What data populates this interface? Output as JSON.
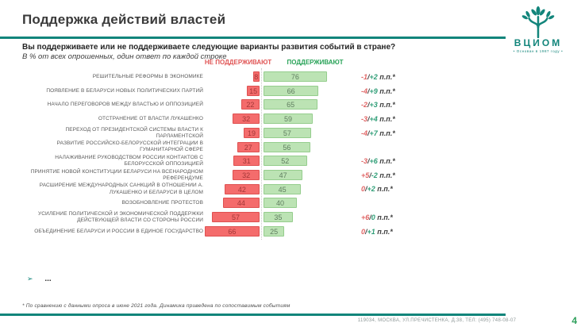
{
  "header": {
    "title": "Поддержка действий властей",
    "logo": {
      "name": "ВЦИОМ",
      "tagline": "• Основан в 1987 году •"
    }
  },
  "question": {
    "text": "Вы поддерживаете или не поддерживаете следующие варианты развития событий в стране?",
    "note": "В % от всех опрошенных, один ответ по каждой строке"
  },
  "legend": {
    "no": "НЕ ПОДДЕРЖИВАЮТ",
    "yes": "ПОДДЕРЖИВАЮТ"
  },
  "chart_data": {
    "type": "bar",
    "variant": "diverging-horizontal",
    "unit": "% от всех опрошенных",
    "title": "Поддержка действий властей",
    "categories": [
      "РЕШИТЕЛЬНЫЕ РЕФОРМЫ В ЭКОНОМИКЕ",
      "ПОЯВЛЕНИЕ В БЕЛАРУСИ НОВЫХ ПОЛИТИЧЕСКИХ ПАРТИЙ",
      "НАЧАЛО ПЕРЕГОВОРОВ МЕЖДУ ВЛАСТЬЮ И ОППОЗИЦИЕЙ",
      "ОТСТРАНЕНИЕ ОТ ВЛАСТИ ЛУКАШЕНКО",
      "ПЕРЕХОД ОТ ПРЕЗИДЕНТСКОЙ СИСТЕМЫ ВЛАСТИ К ПАРЛАМЕНТСКОЙ",
      "РАЗВИТИЕ РОССИЙСКО-БЕЛОРУССКОЙ ИНТЕГРАЦИИ В ГУМАНИТАРНОЙ СФЕРЕ",
      "НАЛАЖИВАНИЕ РУКОВОДСТВОМ РОССИИ КОНТАКТОВ С БЕЛОРУССКОЙ ОППОЗИЦИЕЙ",
      "ПРИНЯТИЕ НОВОЙ КОНСТИТУЦИИ БЕЛАРУСИ НА ВСЕНАРОДНОМ РЕФЕРЕНДУМЕ",
      "РАСШИРЕНИЕ МЕЖДУНАРОДНЫХ САНКЦИЙ В ОТНОШЕНИИ А. ЛУКАШЕНКО И БЕЛАРУСИ В ЦЕЛОМ",
      "ВОЗОБНОВЛЕНИЕ ПРОТЕСТОВ",
      "УСИЛЕНИЕ ПОЛИТИЧЕСКОЙ И ЭКОНОМИЧЕСКОЙ ПОДДЕРЖКИ ДЕЙСТВУЮЩЕЙ ВЛАСТИ СО СТОРОНЫ РОССИИ",
      "ОБЪЕДИНЕНИЕ БЕЛАРУСИ И РОССИИ В ЕДИНОЕ ГОСУДАРСТВО"
    ],
    "series": [
      {
        "name": "НЕ ПОДДЕРЖИВАЮТ",
        "values": [
          8,
          15,
          22,
          32,
          19,
          27,
          31,
          32,
          42,
          44,
          57,
          66
        ]
      },
      {
        "name": "ПОДДЕРЖИВАЮТ",
        "values": [
          76,
          66,
          65,
          59,
          57,
          56,
          52,
          47,
          45,
          40,
          35,
          25
        ]
      }
    ],
    "deltas": [
      {
        "no": "-1",
        "sep": "/",
        "yes": "+2",
        "suffix": " п.п.*"
      },
      {
        "no": "-4",
        "sep": "/",
        "yes": "+9",
        "suffix": " п.п.*"
      },
      {
        "no": "-2",
        "sep": "/",
        "yes": "+3",
        "suffix": " п.п.*"
      },
      {
        "no": "-3",
        "sep": "/",
        "yes": "+4",
        "suffix": " п.п.*"
      },
      {
        "no": "-4",
        "sep": "/",
        "yes": "+7",
        "suffix": " п.п.*"
      },
      null,
      {
        "no": "-3",
        "sep": "/",
        "yes": "+6",
        "suffix": " п.п.*"
      },
      {
        "no": "+5",
        "sep": "/",
        "yes": "-2",
        "suffix": " п.п.*"
      },
      {
        "no": "0",
        "sep": "/",
        "yes": "+2",
        "suffix": " п.п.*"
      },
      null,
      {
        "no": "+6",
        "sep": "/",
        "yes": "0",
        "suffix": " п.п.*"
      },
      {
        "no": "0",
        "sep": "/",
        "yes": "+1",
        "suffix": " п.п.*"
      }
    ],
    "xlim": [
      -100,
      100
    ],
    "grid": false,
    "legend_position": "top"
  },
  "bullet": {
    "arrow": "➢",
    "text": "..."
  },
  "footer": {
    "footnote": "* По сравнению с данными опроса в июне 2021 года. Динамика приведена по сопоставимым событиям",
    "address": "119034, МОСКВА, УЛ.ПРЕЧИСТЕНКА, Д.38, ТЕЛ: (495) 748-08-07",
    "page_number": "4"
  },
  "colors": {
    "brand_teal": "#12857B",
    "bar_no_fill": "#F46C6C",
    "bar_yes_fill": "#BCE3B4",
    "legend_no": "#E05555",
    "legend_yes": "#27A257",
    "delta_no": "#E06666",
    "delta_yes": "#2F9E77",
    "page_number": "#2FA05C"
  }
}
